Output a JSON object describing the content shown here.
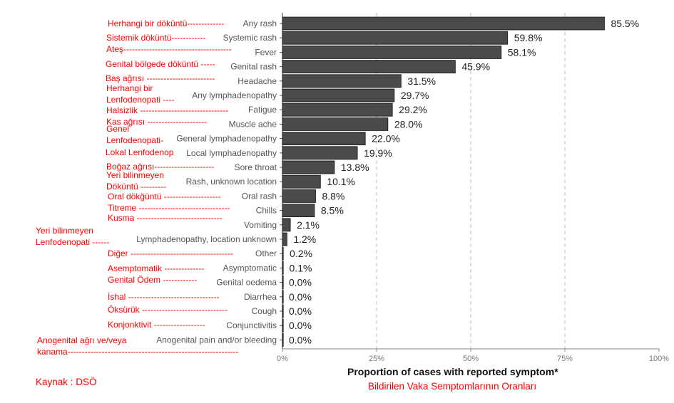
{
  "chart_data": {
    "type": "bar",
    "orientation": "horizontal",
    "categories": [
      "Any rash",
      "Systemic rash",
      "Fever",
      "Genital rash",
      "Headache",
      "Any lymphadenopathy",
      "Fatigue",
      "Muscle ache",
      "General lymphadenopathy",
      "Local lymphadenopathy",
      "Sore throat",
      "Rash, unknown location",
      "Oral rash",
      "Chills",
      "Vomiting",
      "Lymphadenopathy, location unknown",
      "Other",
      "Asymptomatic",
      "Genital oedema",
      "Diarrhea",
      "Cough",
      "Conjunctivitis",
      "Anogenital pain and/or bleeding"
    ],
    "values": [
      85.5,
      59.8,
      58.1,
      45.9,
      31.5,
      29.7,
      29.2,
      28.0,
      22.0,
      19.9,
      13.8,
      10.1,
      8.8,
      8.5,
      2.1,
      1.2,
      0.2,
      0.1,
      0.0,
      0.0,
      0.0,
      0.0,
      0.0
    ],
    "value_labels": [
      "85.5%",
      "59.8%",
      "58.1%",
      "45.9%",
      "31.5%",
      "29.7%",
      "29.2%",
      "28.0%",
      "22.0%",
      "19.9%",
      "13.8%",
      "10.1%",
      "8.8%",
      "8.5%",
      "2.1%",
      "1.2%",
      "0.2%",
      "0.1%",
      "0.0%",
      "0.0%",
      "0.0%",
      "0.0%",
      "0.0%"
    ],
    "xlabel": "Proportion of cases with reported symptom*",
    "xlabel_tr": "Bildirilen Vaka Semptomlarının Oranları",
    "xlim": [
      0,
      100
    ],
    "xticks": [
      0,
      25,
      50,
      75,
      100
    ],
    "xtick_labels": [
      "0%",
      "25%",
      "50%",
      "75%",
      "100%"
    ],
    "grid": "vertical dashed",
    "bar_color": "#4a4a4a",
    "annotation_color": "#ff0000"
  },
  "translations": [
    [
      "Herhangi bir döküntü-------------"
    ],
    [
      "Sistemik döküntü------------"
    ],
    [
      "Ateş--------------------------------------"
    ],
    [
      "Genital bölgede döküntü -----"
    ],
    [
      "Baş ağrısı ------------------------"
    ],
    [
      "Herhangi bir",
      "Lenfodenopati ----"
    ],
    [
      "Halsizlik -------------------------------"
    ],
    [
      "Kas ağrısı ---------------------"
    ],
    [
      "Genel",
      "Lenfodenopati-"
    ],
    [
      "Lokal Lenfodenop"
    ],
    [
      "Boğaz ağrısı---------------------"
    ],
    [
      "Yeri bilinmeyen",
      "Döküntü ---------"
    ],
    [
      "Oral dökğüntü --------------------"
    ],
    [
      "Titreme --------------------------------"
    ],
    [
      "Kusma ------------------------------"
    ],
    [
      "Yeri bilinmeyen",
      "Lenfodenopati ------"
    ],
    [
      "Diğer ------------------------------------"
    ],
    [
      "Asemptomatik --------------"
    ],
    [
      "Genital Ödem ------------"
    ],
    [
      "İshal --------------------------------"
    ],
    [
      "Öksürük ------------------------------"
    ],
    [
      "Konjonktivit ------------------"
    ],
    [
      "Anogenital ağrı ve/veya",
      "kanama------------------------------------------------------------"
    ]
  ],
  "source": "Kaynak : DSÖ"
}
